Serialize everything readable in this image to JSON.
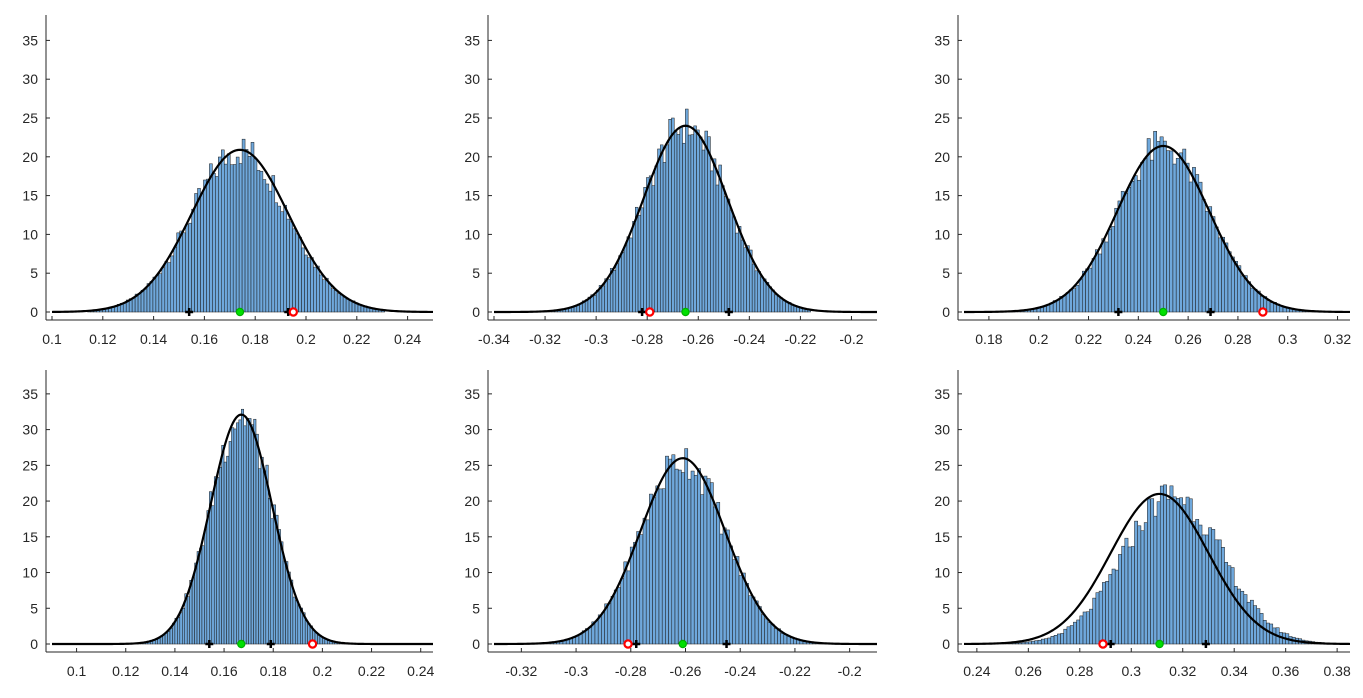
{
  "chart_data": [
    {
      "type": "bar",
      "subtype": "histogram-with-normal-fit",
      "xlim": [
        0.1,
        0.25
      ],
      "ylim": [
        0,
        37.5
      ],
      "xticks": [
        "0.1",
        "0.12",
        "0.14",
        "0.16",
        "0.18",
        "0.2",
        "0.22",
        "0.24"
      ],
      "yticks": [
        "0",
        "5",
        "10",
        "15",
        "20",
        "25",
        "30",
        "35"
      ],
      "data_range": [
        0.114,
        0.231
      ],
      "fit": {
        "mean": 0.174,
        "std": 0.019,
        "peak": 20.9
      },
      "bar_color": "#6fa8dc",
      "markers": {
        "black_plus": [
          0.154,
          0.193
        ],
        "green_circle": [
          0.174
        ],
        "red_circle": [
          0.195
        ]
      }
    },
    {
      "type": "bar",
      "subtype": "histogram-with-normal-fit",
      "xlim": [
        -0.34,
        -0.19
      ],
      "ylim": [
        0,
        37.5
      ],
      "xticks": [
        "-0.34",
        "-0.32",
        "-0.3",
        "-0.28",
        "-0.26",
        "-0.24",
        "-0.22",
        "-0.2"
      ],
      "yticks": [
        "0",
        "5",
        "10",
        "15",
        "20",
        "25",
        "30",
        "35"
      ],
      "data_range": [
        -0.325,
        -0.216
      ],
      "fit": {
        "mean": -0.265,
        "std": 0.0165,
        "peak": 24.0
      },
      "bar_color": "#6fa8dc",
      "markers": {
        "black_plus": [
          -0.282,
          -0.248
        ],
        "green_circle": [
          -0.265
        ],
        "red_circle": [
          -0.279
        ]
      }
    },
    {
      "type": "bar",
      "subtype": "histogram-with-normal-fit",
      "xlim": [
        0.17,
        0.325
      ],
      "ylim": [
        0,
        37.5
      ],
      "xticks": [
        "0.18",
        "0.2",
        "0.22",
        "0.24",
        "0.26",
        "0.28",
        "0.3",
        "0.32"
      ],
      "yticks": [
        "0",
        "5",
        "10",
        "15",
        "20",
        "25",
        "30",
        "35"
      ],
      "data_range": [
        0.185,
        0.315
      ],
      "fit": {
        "mean": 0.25,
        "std": 0.0185,
        "peak": 21.4
      },
      "bar_color": "#6fa8dc",
      "markers": {
        "black_plus": [
          0.232,
          0.269
        ],
        "green_circle": [
          0.25
        ],
        "red_circle": [
          0.29
        ]
      }
    },
    {
      "type": "bar",
      "subtype": "histogram-with-normal-fit",
      "xlim": [
        0.09,
        0.245
      ],
      "ylim": [
        0,
        37.5
      ],
      "xticks": [
        "0.1",
        "0.12",
        "0.14",
        "0.16",
        "0.18",
        "0.2",
        "0.22",
        "0.24"
      ],
      "yticks": [
        "0",
        "5",
        "10",
        "15",
        "20",
        "25",
        "30",
        "35"
      ],
      "data_range": [
        0.118,
        0.218
      ],
      "fit": {
        "mean": 0.167,
        "std": 0.0125,
        "peak": 32.1
      },
      "bar_color": "#6fa8dc",
      "markers": {
        "black_plus": [
          0.154,
          0.179
        ],
        "green_circle": [
          0.167
        ],
        "red_circle": [
          0.196
        ]
      }
    },
    {
      "type": "bar",
      "subtype": "histogram-with-normal-fit",
      "xlim": [
        -0.33,
        -0.19
      ],
      "ylim": [
        0,
        37.5
      ],
      "xticks": [
        "-0.32",
        "-0.3",
        "-0.28",
        "-0.26",
        "-0.24",
        "-0.22",
        "-0.2"
      ],
      "yticks": [
        "0",
        "5",
        "10",
        "15",
        "20",
        "25",
        "30",
        "35"
      ],
      "data_range": [
        -0.32,
        -0.203
      ],
      "fit": {
        "mean": -0.261,
        "std": 0.0155,
        "peak": 26.0
      },
      "bar_color": "#6fa8dc",
      "markers": {
        "black_plus": [
          -0.278,
          -0.245
        ],
        "green_circle": [
          -0.261
        ],
        "red_circle": [
          -0.281
        ]
      }
    },
    {
      "type": "bar",
      "subtype": "histogram-with-normal-fit",
      "xlim": [
        0.235,
        0.385
      ],
      "ylim": [
        0,
        37.5
      ],
      "xticks": [
        "0.24",
        "0.26",
        "0.28",
        "0.3",
        "0.32",
        "0.34",
        "0.36",
        "0.38"
      ],
      "yticks": [
        "0",
        "5",
        "10",
        "15",
        "20",
        "25",
        "30",
        "35"
      ],
      "data_range": [
        0.25,
        0.375
      ],
      "fit": {
        "mean": 0.311,
        "std": 0.019,
        "peak": 21.0
      },
      "bar_color": "#6fa8dc",
      "markers": {
        "black_plus": [
          0.292,
          0.329
        ],
        "green_circle": [
          0.311
        ],
        "red_circle": [
          0.289
        ]
      },
      "hist_shift": 0.005
    }
  ]
}
